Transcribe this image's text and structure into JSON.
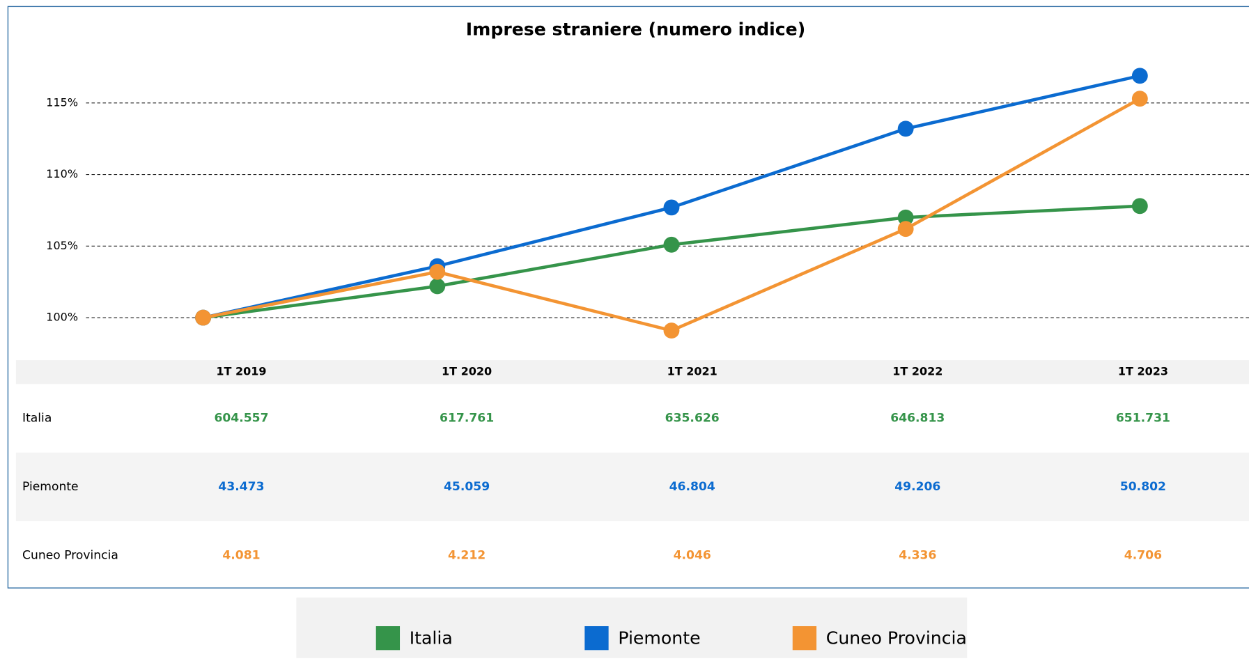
{
  "chart_data": {
    "type": "line",
    "title": "Imprese straniere (numero indice)",
    "categories": [
      "1T 2019",
      "1T 2020",
      "1T 2021",
      "1T 2022",
      "1T 2023"
    ],
    "series": [
      {
        "name": "Italia",
        "color": "#35944a",
        "values": [
          100,
          102.2,
          105.1,
          107.0,
          107.8
        ]
      },
      {
        "name": "Piemonte",
        "color": "#0b6bd0",
        "values": [
          100,
          103.6,
          107.7,
          113.2,
          116.9
        ]
      },
      {
        "name": "Cuneo Provincia",
        "color": "#f39433",
        "values": [
          100,
          103.2,
          99.1,
          106.2,
          115.3
        ]
      }
    ],
    "ylim": [
      97.7,
      118.4
    ],
    "yticks": [
      {
        "value": 100,
        "label": "100%"
      },
      {
        "value": 105,
        "label": "105%"
      },
      {
        "value": 110,
        "label": "110%"
      },
      {
        "value": 115,
        "label": "115%"
      }
    ],
    "grid": true
  },
  "table": {
    "rows": [
      [
        "604.557",
        "617.761",
        "635.626",
        "646.813",
        "651.731"
      ],
      [
        "43.473",
        "45.059",
        "46.804",
        "49.206",
        "50.802"
      ],
      [
        "4.081",
        "4.212",
        "4.046",
        "4.336",
        "4.706"
      ]
    ]
  }
}
